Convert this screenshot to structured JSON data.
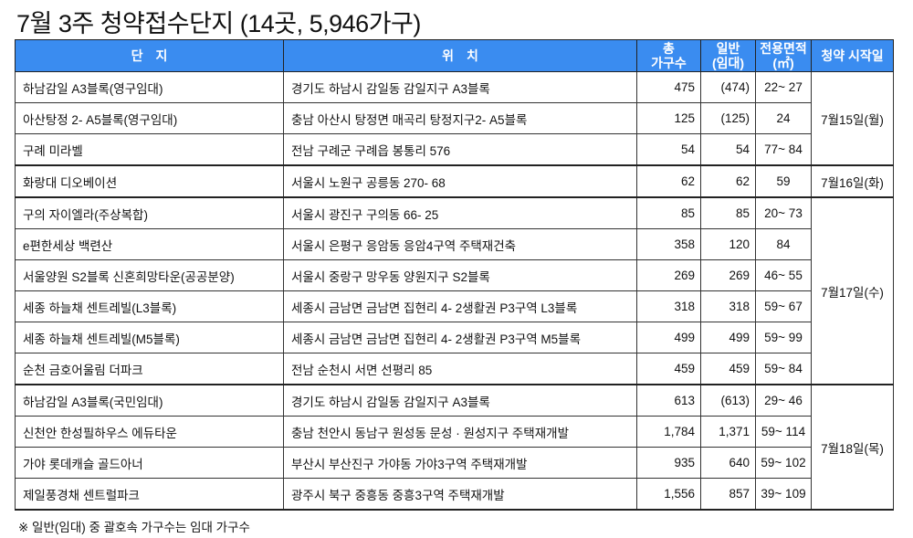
{
  "title": "7월 3주 청약접수단지 (14곳, 5,946가구)",
  "header": {
    "complex": "단　지",
    "location": "위　치",
    "total_households_1": "총",
    "total_households_2": "가구수",
    "general_1": "일반",
    "general_2": "(임대)",
    "area_1": "전용면적",
    "area_2": "(㎡)",
    "start_date": "청약 시작일"
  },
  "groups": [
    {
      "date": "7월15일(월)",
      "rows": [
        {
          "complex": "하남감일 A3블록(영구임대)",
          "location": "경기도 하남시 감일동 감일지구 A3블록",
          "total": "475",
          "general": "(474)",
          "area": "22~ 27"
        },
        {
          "complex": "아산탕정 2- A5블록(영구임대)",
          "location": "충남 아산시 탕정면 매곡리 탕정지구2- A5블록",
          "total": "125",
          "general": "(125)",
          "area": "24"
        },
        {
          "complex": "구례 미라벨",
          "location": "전남 구례군 구례읍 봉통리 576",
          "total": "54",
          "general": "54",
          "area": "77~ 84"
        }
      ]
    },
    {
      "date": "7월16일(화)",
      "rows": [
        {
          "complex": "화랑대 디오베이션",
          "location": "서울시 노원구 공릉동 270- 68",
          "total": "62",
          "general": "62",
          "area": "59"
        }
      ]
    },
    {
      "date": "7월17일(수)",
      "rows": [
        {
          "complex": "구의 자이엘라(주상복합)",
          "location": "서울시 광진구 구의동 66- 25",
          "total": "85",
          "general": "85",
          "area": "20~ 73"
        },
        {
          "complex": "e편한세상 백련산",
          "location": "서울시 은평구 응암동 응암4구역 주택재건축",
          "total": "358",
          "general": "120",
          "area": "84"
        },
        {
          "complex": "서울양원 S2블록 신혼희망타운(공공분양)",
          "location": "서울시 중랑구 망우동 양원지구 S2블록",
          "total": "269",
          "general": "269",
          "area": "46~ 55"
        },
        {
          "complex": "세종 하늘채 센트레빌(L3블록)",
          "location": "세종시 금남면 금남면 집현리 4- 2생활권 P3구역 L3블록",
          "total": "318",
          "general": "318",
          "area": "59~ 67"
        },
        {
          "complex": "세종 하늘채 센트레빌(M5블록)",
          "location": "세종시 금남면 금남면 집현리 4- 2생활권 P3구역 M5블록",
          "total": "499",
          "general": "499",
          "area": "59~ 99"
        },
        {
          "complex": "순천 금호어울림 더파크",
          "location": "전남 순천시 서면 선평리 85",
          "total": "459",
          "general": "459",
          "area": "59~ 84"
        }
      ]
    },
    {
      "date": "7월18일(목)",
      "rows": [
        {
          "complex": "하남감일 A3블록(국민임대)",
          "location": "경기도 하남시 감일동 감일지구 A3블록",
          "total": "613",
          "general": "(613)",
          "area": "29~ 46"
        },
        {
          "complex": "신천안 한성필하우스 에듀타운",
          "location": "충남 천안시 동남구 원성동 문성 · 원성지구 주택재개발",
          "total": "1,784",
          "general": "1,371",
          "area": "59~ 114"
        },
        {
          "complex": "가야 롯데캐슬 골드아너",
          "location": "부산시 부산진구 가야동 가야3구역 주택재개발",
          "total": "935",
          "general": "640",
          "area": "59~ 102"
        },
        {
          "complex": "제일풍경채 센트럴파크",
          "location": "광주시 북구 중흥동 중흥3구역 주택재개발",
          "total": "1,556",
          "general": "857",
          "area": "39~ 109"
        }
      ]
    }
  ],
  "footnote": "※ 일반(임대) 중 괄호속 가구수는 임대 가구수",
  "colors": {
    "header_bg": "#3a8cf0",
    "header_text": "#ffffff"
  }
}
